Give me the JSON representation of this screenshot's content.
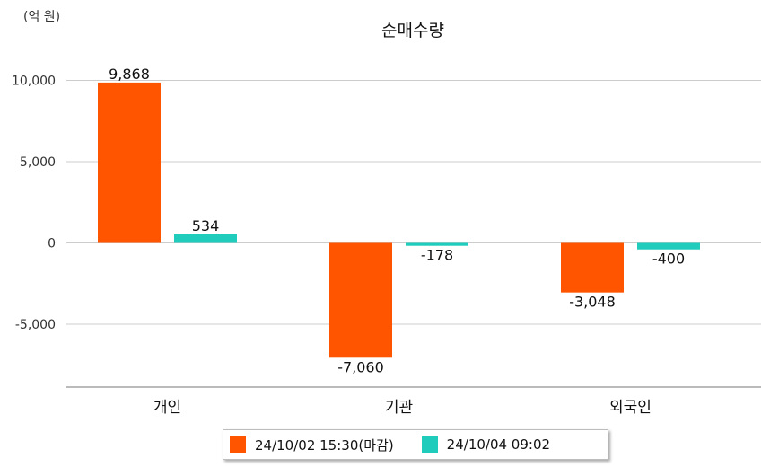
{
  "unit_label": "(억 원)",
  "chart_data": {
    "type": "bar",
    "title": "순매수량",
    "categories": [
      "개인",
      "기관",
      "외국인"
    ],
    "series": [
      {
        "name": "24/10/02 15:30(마감)",
        "color": "#ff5500",
        "values": [
          9868,
          -7060,
          -3048
        ],
        "labels": [
          "9,868",
          "-7,060",
          "-3,048"
        ]
      },
      {
        "name": "24/10/04 09:02",
        "color": "#20ccbb",
        "values": [
          534,
          -178,
          -400
        ],
        "labels": [
          "534",
          "-178",
          "-400"
        ]
      }
    ],
    "y_ticks": [
      10000,
      5000,
      0,
      -5000
    ],
    "y_tick_labels": [
      "10,000",
      "5,000",
      "0",
      "-5,000"
    ],
    "ylim": [
      -8800,
      10500
    ],
    "grid": true,
    "legend_position": "bottom"
  }
}
